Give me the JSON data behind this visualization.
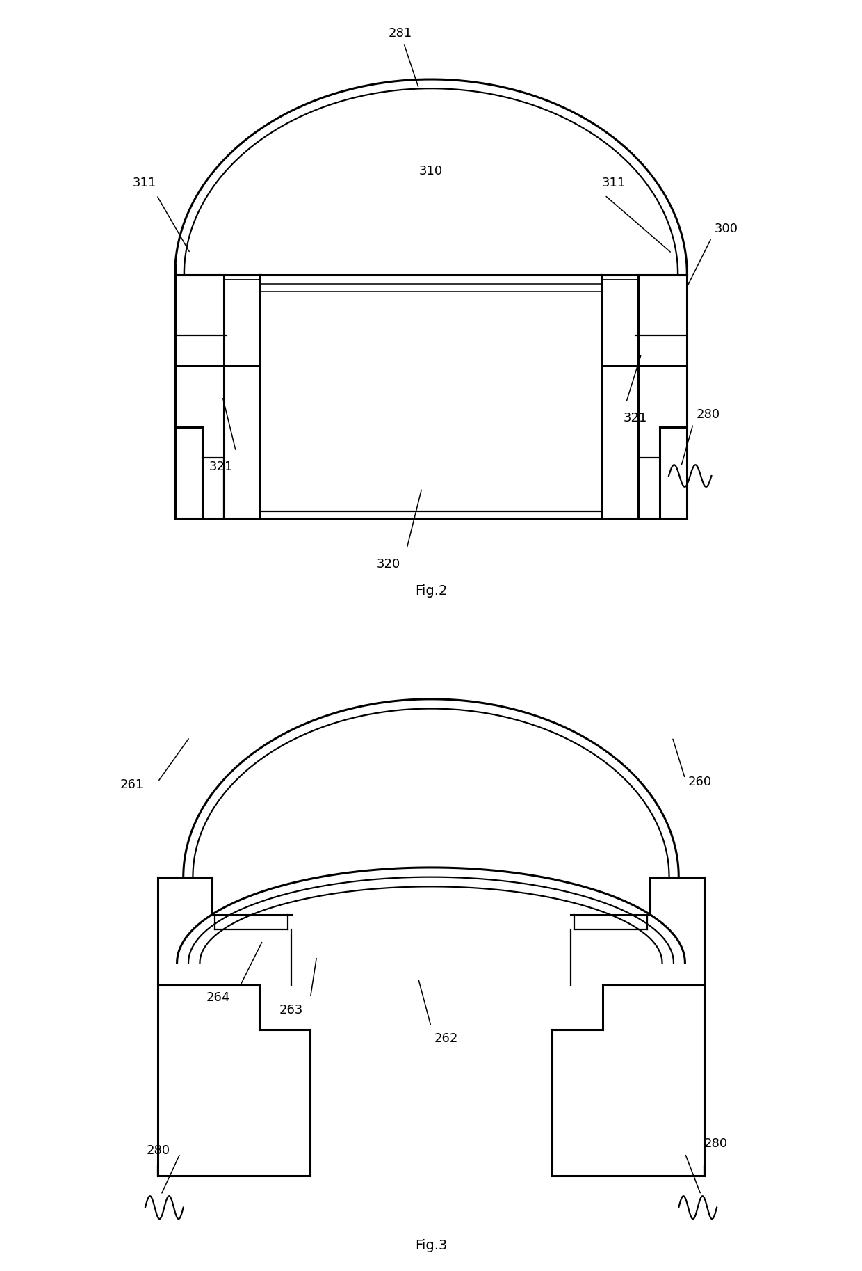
{
  "fig_width": 12.4,
  "fig_height": 18.27,
  "bg_color": "#ffffff",
  "line_color": "#000000",
  "lw": 1.6,
  "tlw": 2.2
}
